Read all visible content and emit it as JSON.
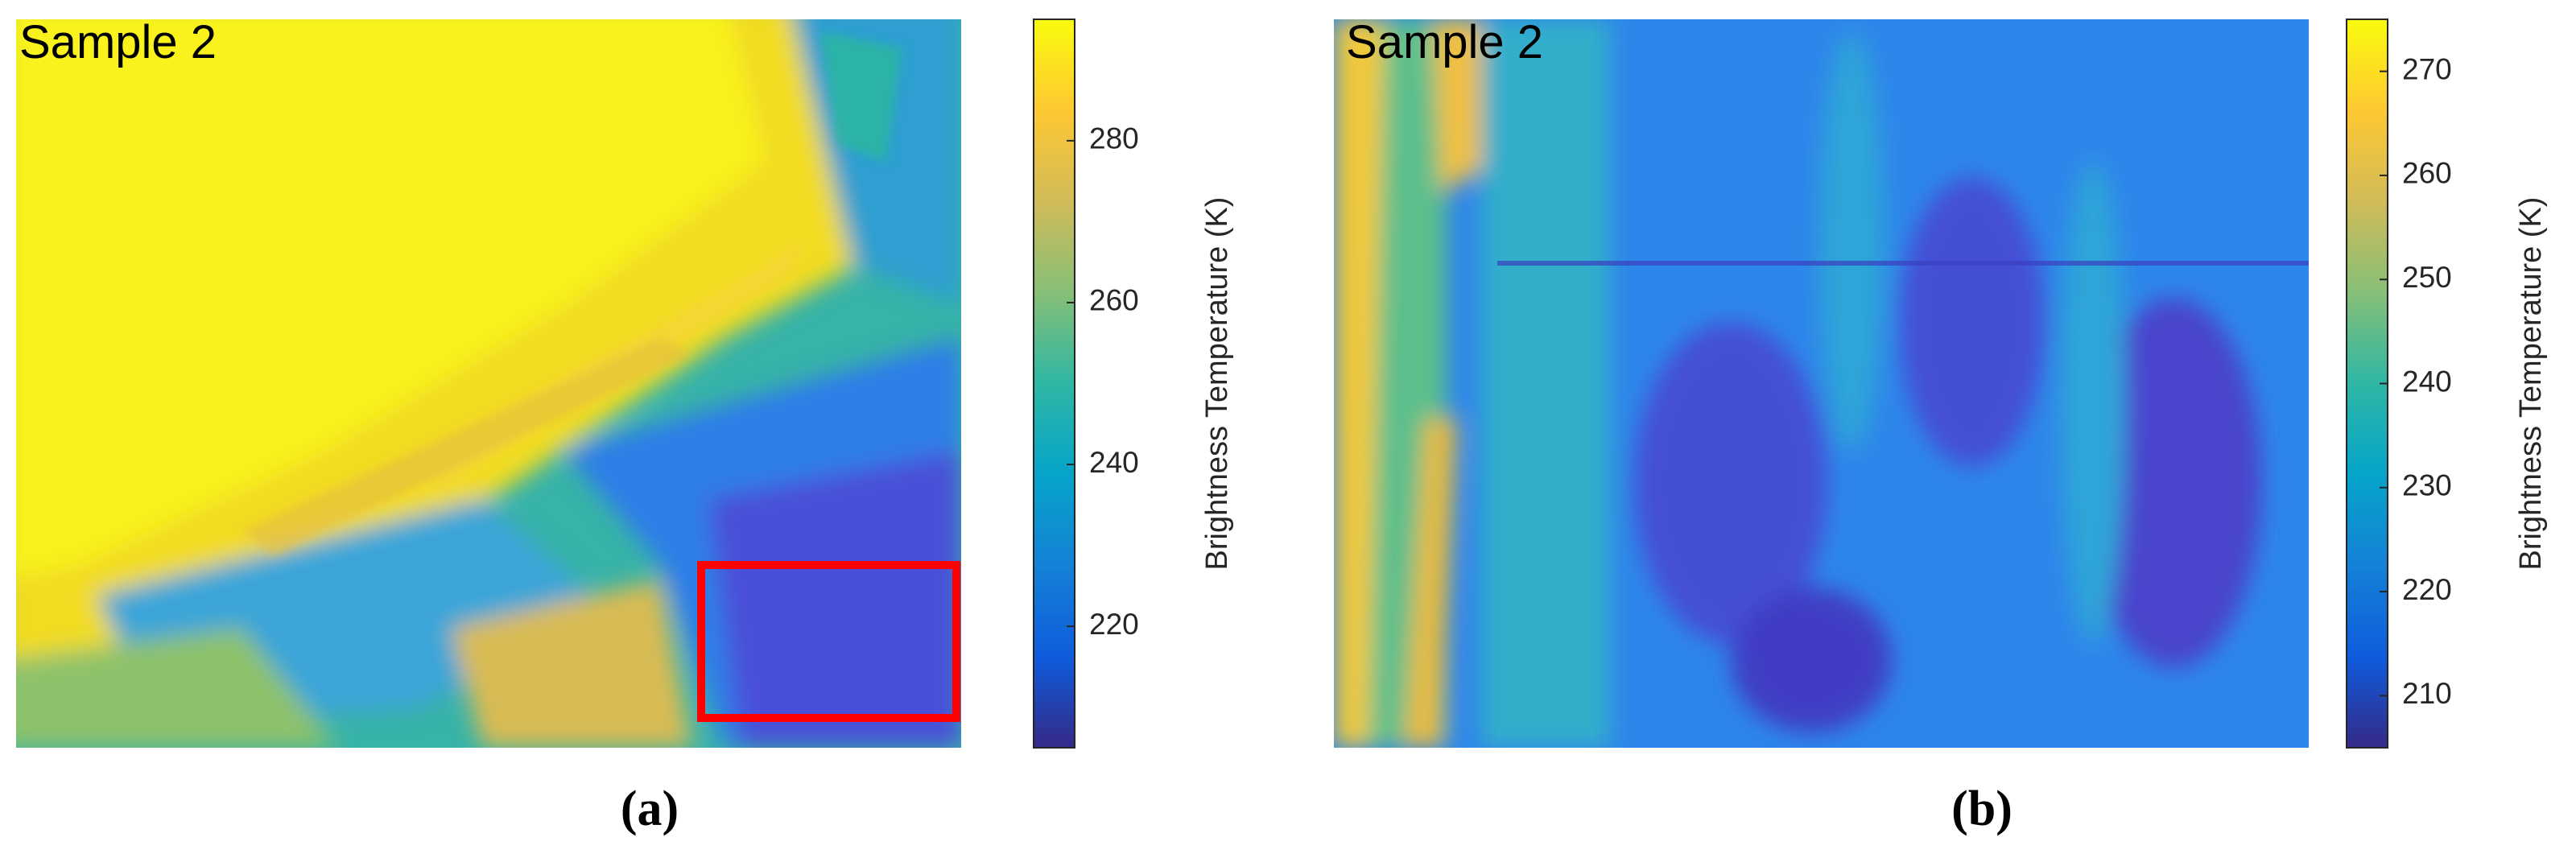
{
  "chart_data": [
    {
      "type": "heatmap",
      "title": "Sample 2",
      "panel_label": "(a)",
      "colorbar_label": "Brightness Temperature (K)",
      "colormap": "parula",
      "clim": [
        205,
        295
      ],
      "cticks": [
        220,
        240,
        260,
        280
      ],
      "highlight_color": "#ff0000"
    },
    {
      "type": "heatmap",
      "title": "Sample 2",
      "panel_label": "(b)",
      "colorbar_label": "Brightness Temperature (K)",
      "colormap": "parula",
      "clim": [
        205,
        275
      ],
      "cticks": [
        210,
        220,
        230,
        240,
        250,
        260,
        270
      ]
    }
  ]
}
